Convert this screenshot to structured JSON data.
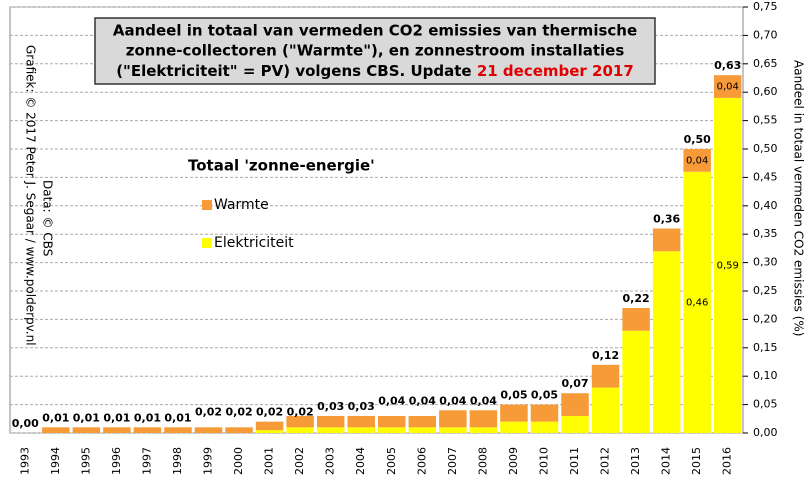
{
  "chart_data": {
    "type": "stacked_bar",
    "title": [
      "Aandeel in totaal van vermeden CO2 emissies  van thermische",
      "zonne-collectoren  (\"Warmte\"), en zonnestroom installaties",
      "(\"Elektriciteit\"  = PV) volgens CBS. Update"
    ],
    "title_date": "21 december 2017",
    "ylabel": "Aandeel in totaal vermeden  CO2 emissies  (%)",
    "credit": "Grafiek:  © 2017  Peter J. Segaar / www.polderpv.nl",
    "data_credit": "Data: © CBS",
    "legend_title": "Totaal 'zonne-energie'",
    "categories": [
      "1993",
      "1994",
      "1995",
      "1996",
      "1997",
      "1998",
      "1999",
      "2000",
      "2001",
      "2002",
      "2003",
      "2004",
      "2005",
      "2006",
      "2007",
      "2008",
      "2009",
      "2010",
      "2011",
      "2012",
      "2013",
      "2014",
      "2015",
      "2016"
    ],
    "series": [
      {
        "name": "Elektriciteit",
        "color": "#ffff00",
        "values": [
          0,
          0,
          0,
          0,
          0,
          0,
          0,
          0,
          0.005,
          0.01,
          0.01,
          0.01,
          0.01,
          0.01,
          0.01,
          0.01,
          0.02,
          0.02,
          0.03,
          0.08,
          0.18,
          0.32,
          0.46,
          0.59
        ],
        "value_labels": [
          null,
          null,
          null,
          null,
          null,
          null,
          null,
          null,
          null,
          null,
          null,
          null,
          null,
          null,
          null,
          null,
          null,
          null,
          null,
          null,
          null,
          null,
          "0,46",
          "0,59"
        ]
      },
      {
        "name": "Warmte",
        "color": "#f79a38",
        "values": [
          0,
          0.01,
          0.01,
          0.01,
          0.01,
          0.01,
          0.01,
          0.01,
          0.015,
          0.02,
          0.02,
          0.02,
          0.02,
          0.02,
          0.03,
          0.03,
          0.03,
          0.03,
          0.04,
          0.04,
          0.04,
          0.04,
          0.04,
          0.04
        ],
        "value_labels": [
          null,
          null,
          null,
          null,
          null,
          null,
          null,
          null,
          null,
          null,
          null,
          null,
          null,
          null,
          null,
          null,
          null,
          null,
          null,
          null,
          null,
          null,
          "0,04",
          "0,04"
        ]
      }
    ],
    "totals": [
      0,
      0.01,
      0.01,
      0.01,
      0.01,
      0.01,
      0.02,
      0.02,
      0.02,
      0.02,
      0.03,
      0.03,
      0.04,
      0.04,
      0.04,
      0.04,
      0.05,
      0.05,
      0.07,
      0.12,
      0.22,
      0.36,
      0.5,
      0.63
    ],
    "total_labels": [
      "0,00",
      "0,01",
      "0,01",
      "0,01",
      "0,01",
      "0,01",
      "0,02",
      "0,02",
      "0,02",
      "0,02",
      "0,03",
      "0,03",
      "0,04",
      "0,04",
      "0,04",
      "0,04",
      "0,05",
      "0,05",
      "0,07",
      "0,12",
      "0,22",
      "0,36",
      "0,50",
      "0,63"
    ],
    "ylim": [
      0,
      0.75
    ],
    "yticks": [
      {
        "value": 0,
        "label": "0,00"
      },
      {
        "value": 0.05,
        "label": "0,05"
      },
      {
        "value": 0.1,
        "label": "0,10"
      },
      {
        "value": 0.15,
        "label": "0,15"
      },
      {
        "value": 0.2,
        "label": "0,20"
      },
      {
        "value": 0.25,
        "label": "0,25"
      },
      {
        "value": 0.3,
        "label": "0,30"
      },
      {
        "value": 0.35,
        "label": "0,35"
      },
      {
        "value": 0.4,
        "label": "0,40"
      },
      {
        "value": 0.45,
        "label": "0,45"
      },
      {
        "value": 0.5,
        "label": "0,50"
      },
      {
        "value": 0.55,
        "label": "0,55"
      },
      {
        "value": 0.6,
        "label": "0,60"
      },
      {
        "value": 0.65,
        "label": "0,65"
      },
      {
        "value": 0.7,
        "label": "0,70"
      },
      {
        "value": 0.75,
        "label": "0,75"
      }
    ],
    "grid": true
  }
}
